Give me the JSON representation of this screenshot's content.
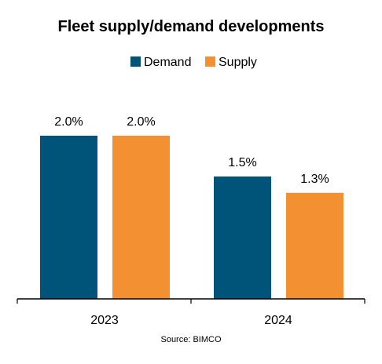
{
  "chart_data": {
    "type": "bar",
    "title": "Fleet supply/demand developments",
    "categories": [
      "2023",
      "2024"
    ],
    "series": [
      {
        "name": "Demand",
        "values": [
          2.0,
          1.5
        ],
        "labels": [
          "2.0%",
          "1.5%"
        ],
        "color": "#005479"
      },
      {
        "name": "Supply",
        "values": [
          2.0,
          1.3
        ],
        "labels": [
          "2.0%",
          "1.3%"
        ],
        "color": "#F39031"
      }
    ],
    "ylim": [
      0,
      2.0
    ],
    "grid": false,
    "legend_position": "top-center",
    "source": "Source: BIMCO"
  }
}
